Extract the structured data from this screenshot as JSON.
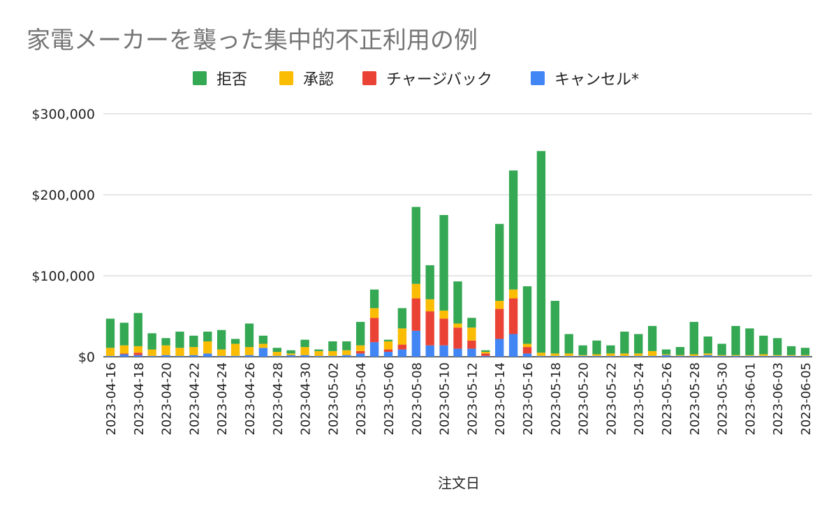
{
  "chart_data": {
    "type": "bar",
    "stacked": true,
    "title": "家電メーカーを襲った集中的不正利用の例",
    "xlabel": "注文日",
    "ylabel": "",
    "ylim": [
      0,
      300000
    ],
    "y_ticks": [
      "$0",
      "$100,000",
      "$200,000",
      "$300,000"
    ],
    "y_tick_values": [
      0,
      100000,
      200000,
      300000
    ],
    "grid": true,
    "legend_position": "top",
    "categories": [
      "2023-04-16",
      "2023-04-17",
      "2023-04-18",
      "2023-04-19",
      "2023-04-20",
      "2023-04-21",
      "2023-04-22",
      "2023-04-23",
      "2023-04-24",
      "2023-04-25",
      "2023-04-26",
      "2023-04-27",
      "2023-04-28",
      "2023-04-29",
      "2023-04-30",
      "2023-05-01",
      "2023-05-02",
      "2023-05-03",
      "2023-05-04",
      "2023-05-05",
      "2023-05-06",
      "2023-05-07",
      "2023-05-08",
      "2023-05-09",
      "2023-05-10",
      "2023-05-11",
      "2023-05-12",
      "2023-05-13",
      "2023-05-14",
      "2023-05-15",
      "2023-05-16",
      "2023-05-17",
      "2023-05-18",
      "2023-05-19",
      "2023-05-20",
      "2023-05-21",
      "2023-05-22",
      "2023-05-23",
      "2023-05-24",
      "2023-05-25",
      "2023-05-26",
      "2023-05-27",
      "2023-05-28",
      "2023-05-29",
      "2023-05-30",
      "2023-05-31",
      "2023-06-01",
      "2023-06-02",
      "2023-06-03",
      "2023-06-04",
      "2023-06-05"
    ],
    "x_tick_labels": [
      "2023-04-16",
      "2023-04-18",
      "2023-04-20",
      "2023-04-22",
      "2023-04-24",
      "2023-04-26",
      "2023-04-28",
      "2023-04-30",
      "2023-05-02",
      "2023-05-04",
      "2023-05-06",
      "2023-05-08",
      "2023-05-10",
      "2023-05-12",
      "2023-05-14",
      "2023-05-16",
      "2023-05-18",
      "2023-05-20",
      "2023-05-22",
      "2023-05-24",
      "2023-05-26",
      "2023-05-28",
      "2023-05-30",
      "2023-06-01",
      "2023-06-03",
      "2023-06-05"
    ],
    "series": [
      {
        "name": "キャンセル*",
        "color": "#4285f4",
        "values": [
          1000,
          3000,
          2000,
          1000,
          2000,
          1000,
          2000,
          4000,
          1000,
          1000,
          2000,
          11000,
          1000,
          2000,
          2000,
          1000,
          1000,
          2000,
          4000,
          18000,
          6000,
          9000,
          32000,
          14000,
          14000,
          10000,
          10000,
          1000,
          22000,
          28000,
          4000,
          1000,
          1000,
          1000,
          1000,
          1000,
          1000,
          1000,
          1000,
          1000,
          2000,
          1000,
          1000,
          2000,
          1000,
          1000,
          1000,
          1000,
          1000,
          1000,
          1000
        ]
      },
      {
        "name": "チャージバック",
        "color": "#ea4335",
        "values": [
          0,
          1000,
          3000,
          0,
          0,
          0,
          0,
          0,
          0,
          0,
          0,
          0,
          0,
          0,
          0,
          0,
          0,
          0,
          3000,
          30000,
          3000,
          6000,
          40000,
          42000,
          33000,
          26000,
          10000,
          3000,
          37000,
          44000,
          8000,
          0,
          0,
          0,
          0,
          0,
          0,
          0,
          0,
          0,
          0,
          0,
          0,
          0,
          0,
          0,
          0,
          0,
          0,
          0,
          0
        ]
      },
      {
        "name": "承認",
        "color": "#fbbc04",
        "values": [
          10000,
          10000,
          8000,
          8000,
          12000,
          10000,
          10000,
          15000,
          8000,
          15000,
          10000,
          5000,
          5000,
          2000,
          10000,
          6000,
          6000,
          6000,
          7000,
          12000,
          10000,
          20000,
          18000,
          15000,
          10000,
          5000,
          16000,
          2000,
          10000,
          11000,
          4000,
          4000,
          3000,
          3000,
          1000,
          2000,
          3000,
          3000,
          3000,
          6000,
          1000,
          1000,
          2000,
          2000,
          1000,
          1000,
          1000,
          2000,
          1000,
          1000,
          1000
        ]
      },
      {
        "name": "拒否",
        "color": "#34a853",
        "values": [
          36000,
          28000,
          41000,
          20000,
          9000,
          20000,
          14000,
          12000,
          24000,
          6000,
          29000,
          10000,
          5000,
          4000,
          9000,
          2000,
          12000,
          11000,
          29000,
          23000,
          2000,
          25000,
          95000,
          42000,
          118000,
          52000,
          12000,
          2000,
          95000,
          147000,
          71000,
          249000,
          65000,
          24000,
          12000,
          17000,
          10000,
          27000,
          24000,
          31000,
          6000,
          10000,
          40000,
          21000,
          14000,
          36000,
          33000,
          23000,
          21000,
          11000,
          9000
        ]
      }
    ]
  }
}
